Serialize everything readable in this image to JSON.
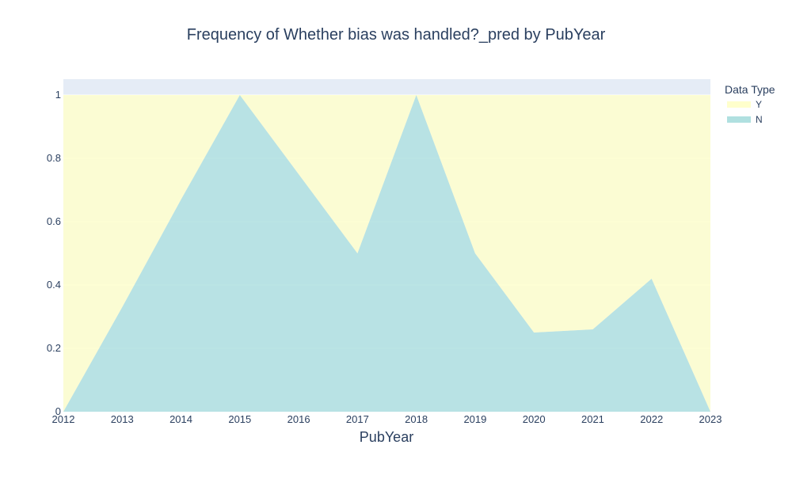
{
  "chart_data": {
    "type": "area",
    "title": "Frequency of Whether bias was handled?_pred by PubYear",
    "xlabel": "PubYear",
    "ylabel": "",
    "x": [
      2012,
      2013,
      2014,
      2015,
      2016,
      2017,
      2018,
      2019,
      2020,
      2021,
      2022,
      2023
    ],
    "xlim": [
      2012,
      2023
    ],
    "ylim": [
      0,
      1.05
    ],
    "y_ticks": [
      0,
      0.2,
      0.4,
      0.6,
      0.8,
      1
    ],
    "grid": true,
    "stacked": true,
    "legend": {
      "title": "Data Type",
      "position": "top-right"
    },
    "series": [
      {
        "name": "N",
        "color": "#b0e0e0",
        "values": [
          0,
          0.33,
          0.67,
          1,
          0.75,
          0.5,
          1,
          0.5,
          0.25,
          0.26,
          0.42,
          0
        ]
      },
      {
        "name": "Y",
        "color": "#ffffcc",
        "values": [
          1,
          0.67,
          0.33,
          0,
          0.25,
          0.5,
          0,
          0.5,
          0.75,
          0.74,
          0.58,
          1
        ]
      }
    ],
    "legend_order": [
      "Y",
      "N"
    ]
  },
  "colors": {
    "plot_background": "#e5ecf6",
    "gridline": "#ffffff",
    "text": "#2a3f5f"
  }
}
